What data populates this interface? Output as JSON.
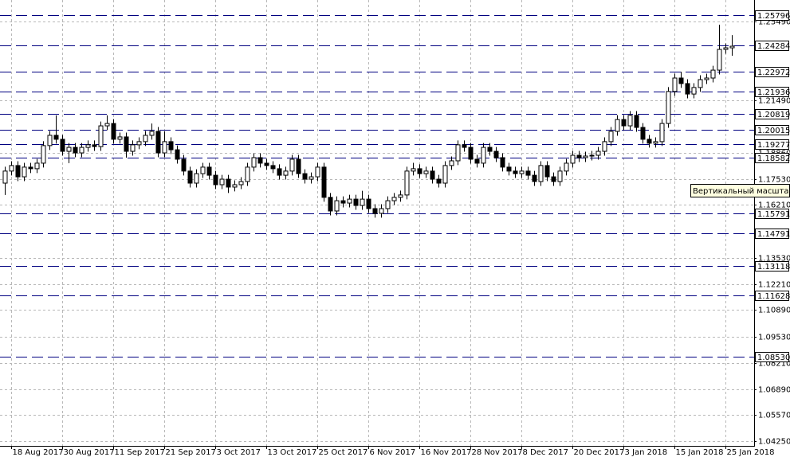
{
  "chart_data": {
    "type": "candlestick",
    "ylim": [
      1.0401,
      1.2658
    ],
    "yticks": [
      {
        "value": 1.2549,
        "label": "1.25490"
      },
      {
        "value": 1.2149,
        "label": "1.21490"
      },
      {
        "value": 1.1886,
        "label": "1.18860"
      },
      {
        "value": 1.1753,
        "label": "1.17530"
      },
      {
        "value": 1.1621,
        "label": "1.16210"
      },
      {
        "value": 1.1353,
        "label": "1.13530"
      },
      {
        "value": 1.1221,
        "label": "1.12210"
      },
      {
        "value": 1.1089,
        "label": "1.10890"
      },
      {
        "value": 1.0953,
        "label": "1.09530"
      },
      {
        "value": 1.0821,
        "label": "1.08210"
      },
      {
        "value": 1.0689,
        "label": "1.06890"
      },
      {
        "value": 1.0557,
        "label": "1.05570"
      },
      {
        "value": 1.0425,
        "label": "1.04250"
      }
    ],
    "grid": true,
    "levels": [
      1.25796,
      1.24284,
      1.22972,
      1.21936,
      1.20819,
      1.20015,
      1.19277,
      1.18582,
      1.15791,
      1.14791,
      1.13118,
      1.11628,
      {
        "value": 1.0853,
        "label": "1.08530"
      }
    ],
    "up_color": "#ffffff",
    "down_color": "#000000",
    "level_color": "#000080",
    "tooltip": "Вертикальный масштаб",
    "categories": [
      null,
      "18 Aug 2017",
      null,
      null,
      null,
      null,
      null,
      null,
      null,
      "30 Aug 2017",
      null,
      null,
      null,
      null,
      null,
      null,
      null,
      "11 Sep 2017",
      null,
      null,
      null,
      null,
      null,
      null,
      null,
      "21 Sep 2017",
      null,
      null,
      null,
      null,
      null,
      null,
      null,
      "3 Oct 2017",
      null,
      null,
      null,
      null,
      null,
      null,
      null,
      "13 Oct 2017",
      null,
      null,
      null,
      null,
      null,
      null,
      null,
      "25 Oct 2017",
      null,
      null,
      null,
      null,
      null,
      null,
      null,
      "6 Nov 2017",
      null,
      null,
      null,
      null,
      null,
      null,
      null,
      "16 Nov 2017",
      null,
      null,
      null,
      null,
      null,
      null,
      null,
      "28 Nov 2017",
      null,
      null,
      null,
      null,
      null,
      null,
      null,
      "8 Dec 2017",
      null,
      null,
      null,
      null,
      null,
      null,
      null,
      "20 Dec 2017",
      null,
      null,
      null,
      null,
      null,
      null,
      null,
      "3 Jan 2018",
      null,
      null,
      null,
      null,
      null,
      null,
      null,
      "15 Jan 2018",
      null,
      null,
      null,
      null,
      null,
      null,
      null,
      "25 Jan 2018",
      null
    ],
    "ohlc": [
      [
        1.1731,
        1.1814,
        1.1671,
        1.1792
      ],
      [
        1.1792,
        1.1842,
        1.177,
        1.182
      ],
      [
        1.182,
        1.1842,
        1.1741,
        1.1763
      ],
      [
        1.1763,
        1.1834,
        1.1741,
        1.1812
      ],
      [
        1.1812,
        1.1834,
        1.1782,
        1.1804
      ],
      [
        1.1804,
        1.1854,
        1.1782,
        1.1832
      ],
      [
        1.1832,
        1.1943,
        1.181,
        1.1921
      ],
      [
        1.1921,
        1.1995,
        1.1899,
        1.1973
      ],
      [
        1.1973,
        1.2074,
        1.1931,
        1.1953
      ],
      [
        1.1953,
        1.1975,
        1.187,
        1.1892
      ],
      [
        1.1892,
        1.1934,
        1.1832,
        1.1912
      ],
      [
        1.1912,
        1.1934,
        1.1862,
        1.1884
      ],
      [
        1.1884,
        1.1934,
        1.1862,
        1.1912
      ],
      [
        1.1912,
        1.1947,
        1.189,
        1.1925
      ],
      [
        1.1925,
        1.1947,
        1.1894,
        1.1916
      ],
      [
        1.1916,
        1.2043,
        1.1894,
        1.2021
      ],
      [
        1.2021,
        1.2074,
        1.1999,
        1.2033
      ],
      [
        1.2033,
        1.2055,
        1.1931,
        1.1953
      ],
      [
        1.1953,
        1.1987,
        1.1931,
        1.1965
      ],
      [
        1.1965,
        1.1987,
        1.186,
        1.1892
      ],
      [
        1.1892,
        1.1947,
        1.187,
        1.1925
      ],
      [
        1.1925,
        1.1963,
        1.1903,
        1.1941
      ],
      [
        1.1941,
        1.1995,
        1.1919,
        1.1973
      ],
      [
        1.1973,
        1.2033,
        1.1951,
        1.1993
      ],
      [
        1.1993,
        1.2015,
        1.1862,
        1.1884
      ],
      [
        1.1884,
        1.1993,
        1.1862,
        1.1941
      ],
      [
        1.1941,
        1.1963,
        1.1878,
        1.19
      ],
      [
        1.19,
        1.1922,
        1.183,
        1.1852
      ],
      [
        1.1852,
        1.1874,
        1.177,
        1.1792
      ],
      [
        1.1792,
        1.1814,
        1.1709,
        1.1731
      ],
      [
        1.1731,
        1.1801,
        1.1709,
        1.1779
      ],
      [
        1.1779,
        1.1834,
        1.1757,
        1.1812
      ],
      [
        1.1812,
        1.1834,
        1.1749,
        1.1771
      ],
      [
        1.1771,
        1.1793,
        1.1701,
        1.1723
      ],
      [
        1.1723,
        1.1773,
        1.1701,
        1.1751
      ],
      [
        1.1751,
        1.1773,
        1.1681,
        1.1711
      ],
      [
        1.1711,
        1.1745,
        1.1689,
        1.1723
      ],
      [
        1.1723,
        1.1761,
        1.1701,
        1.1739
      ],
      [
        1.1739,
        1.1834,
        1.1717,
        1.1812
      ],
      [
        1.1812,
        1.1882,
        1.179,
        1.186
      ],
      [
        1.186,
        1.1882,
        1.181,
        1.1832
      ],
      [
        1.1832,
        1.1854,
        1.1798,
        1.182
      ],
      [
        1.182,
        1.1842,
        1.1782,
        1.1804
      ],
      [
        1.1804,
        1.1826,
        1.1749,
        1.1771
      ],
      [
        1.1771,
        1.1814,
        1.1749,
        1.1792
      ],
      [
        1.1792,
        1.1874,
        1.177,
        1.1852
      ],
      [
        1.1852,
        1.1874,
        1.1757,
        1.1779
      ],
      [
        1.1779,
        1.1801,
        1.1729,
        1.1751
      ],
      [
        1.1751,
        1.1785,
        1.1729,
        1.1763
      ],
      [
        1.1763,
        1.1834,
        1.1741,
        1.1812
      ],
      [
        1.1812,
        1.1834,
        1.1637,
        1.1659
      ],
      [
        1.1659,
        1.1681,
        1.1568,
        1.159
      ],
      [
        1.159,
        1.1664,
        1.1568,
        1.1642
      ],
      [
        1.1642,
        1.1664,
        1.1608,
        1.163
      ],
      [
        1.163,
        1.1672,
        1.1608,
        1.165
      ],
      [
        1.165,
        1.1672,
        1.1596,
        1.1618
      ],
      [
        1.1618,
        1.1692,
        1.1596,
        1.165
      ],
      [
        1.165,
        1.1672,
        1.158,
        1.1602
      ],
      [
        1.1602,
        1.1624,
        1.1556,
        1.1578
      ],
      [
        1.1578,
        1.1624,
        1.1556,
        1.1602
      ],
      [
        1.1602,
        1.1664,
        1.158,
        1.1642
      ],
      [
        1.1642,
        1.1681,
        1.162,
        1.1659
      ],
      [
        1.1659,
        1.1693,
        1.1637,
        1.1671
      ],
      [
        1.1671,
        1.1814,
        1.1649,
        1.1792
      ],
      [
        1.1792,
        1.1834,
        1.177,
        1.1804
      ],
      [
        1.1804,
        1.1826,
        1.1757,
        1.1779
      ],
      [
        1.1779,
        1.1814,
        1.1757,
        1.1792
      ],
      [
        1.1792,
        1.1814,
        1.1729,
        1.1751
      ],
      [
        1.1751,
        1.1773,
        1.1709,
        1.1731
      ],
      [
        1.1731,
        1.1842,
        1.1709,
        1.182
      ],
      [
        1.182,
        1.1866,
        1.1798,
        1.1844
      ],
      [
        1.1844,
        1.1947,
        1.1822,
        1.1925
      ],
      [
        1.1925,
        1.1947,
        1.189,
        1.1912
      ],
      [
        1.1912,
        1.1934,
        1.183,
        1.1852
      ],
      [
        1.1852,
        1.1874,
        1.181,
        1.1832
      ],
      [
        1.1832,
        1.1934,
        1.181,
        1.1912
      ],
      [
        1.1912,
        1.1934,
        1.187,
        1.1892
      ],
      [
        1.1892,
        1.1914,
        1.1838,
        1.186
      ],
      [
        1.186,
        1.1882,
        1.179,
        1.1812
      ],
      [
        1.1812,
        1.1834,
        1.177,
        1.1792
      ],
      [
        1.1792,
        1.1814,
        1.1757,
        1.1779
      ],
      [
        1.1779,
        1.1814,
        1.1757,
        1.1792
      ],
      [
        1.1792,
        1.1814,
        1.1749,
        1.1771
      ],
      [
        1.1771,
        1.1793,
        1.1717,
        1.1739
      ],
      [
        1.1739,
        1.1842,
        1.1717,
        1.182
      ],
      [
        1.182,
        1.1842,
        1.1741,
        1.1763
      ],
      [
        1.1763,
        1.1785,
        1.1717,
        1.1739
      ],
      [
        1.1739,
        1.1814,
        1.1717,
        1.1792
      ],
      [
        1.1792,
        1.1854,
        1.177,
        1.1832
      ],
      [
        1.1832,
        1.1894,
        1.181,
        1.1872
      ],
      [
        1.1872,
        1.1894,
        1.1838,
        1.186
      ],
      [
        1.186,
        1.189,
        1.1838,
        1.1868
      ],
      [
        1.1868,
        1.1894,
        1.1846,
        1.1872
      ],
      [
        1.1872,
        1.1914,
        1.185,
        1.1892
      ],
      [
        1.1892,
        1.1963,
        1.187,
        1.1941
      ],
      [
        1.1941,
        1.2015,
        1.1919,
        1.1993
      ],
      [
        1.1993,
        1.2075,
        1.1971,
        1.2053
      ],
      [
        1.2053,
        1.2075,
        1.1999,
        1.2021
      ],
      [
        1.2021,
        1.2096,
        1.1999,
        1.2074
      ],
      [
        1.2074,
        1.2096,
        1.1991,
        1.2013
      ],
      [
        1.2013,
        1.2035,
        1.1931,
        1.1953
      ],
      [
        1.1953,
        1.1975,
        1.1911,
        1.1933
      ],
      [
        1.1933,
        1.1963,
        1.1911,
        1.1941
      ],
      [
        1.1941,
        1.2055,
        1.1919,
        1.2033
      ],
      [
        1.2033,
        1.2217,
        1.2011,
        1.2195
      ],
      [
        1.2195,
        1.2285,
        1.2173,
        1.2263
      ],
      [
        1.2263,
        1.2295,
        1.2213,
        1.2235
      ],
      [
        1.2235,
        1.2257,
        1.216,
        1.2182
      ],
      [
        1.2182,
        1.2237,
        1.216,
        1.2215
      ],
      [
        1.2215,
        1.2277,
        1.2193,
        1.2255
      ],
      [
        1.2255,
        1.2285,
        1.2233,
        1.2263
      ],
      [
        1.2263,
        1.2325,
        1.2241,
        1.2303
      ],
      [
        1.2303,
        1.2533,
        1.2281,
        1.2408
      ],
      [
        1.2408,
        1.2438,
        1.2386,
        1.2416
      ],
      [
        1.2416,
        1.248,
        1.2376,
        1.2424
      ]
    ]
  }
}
